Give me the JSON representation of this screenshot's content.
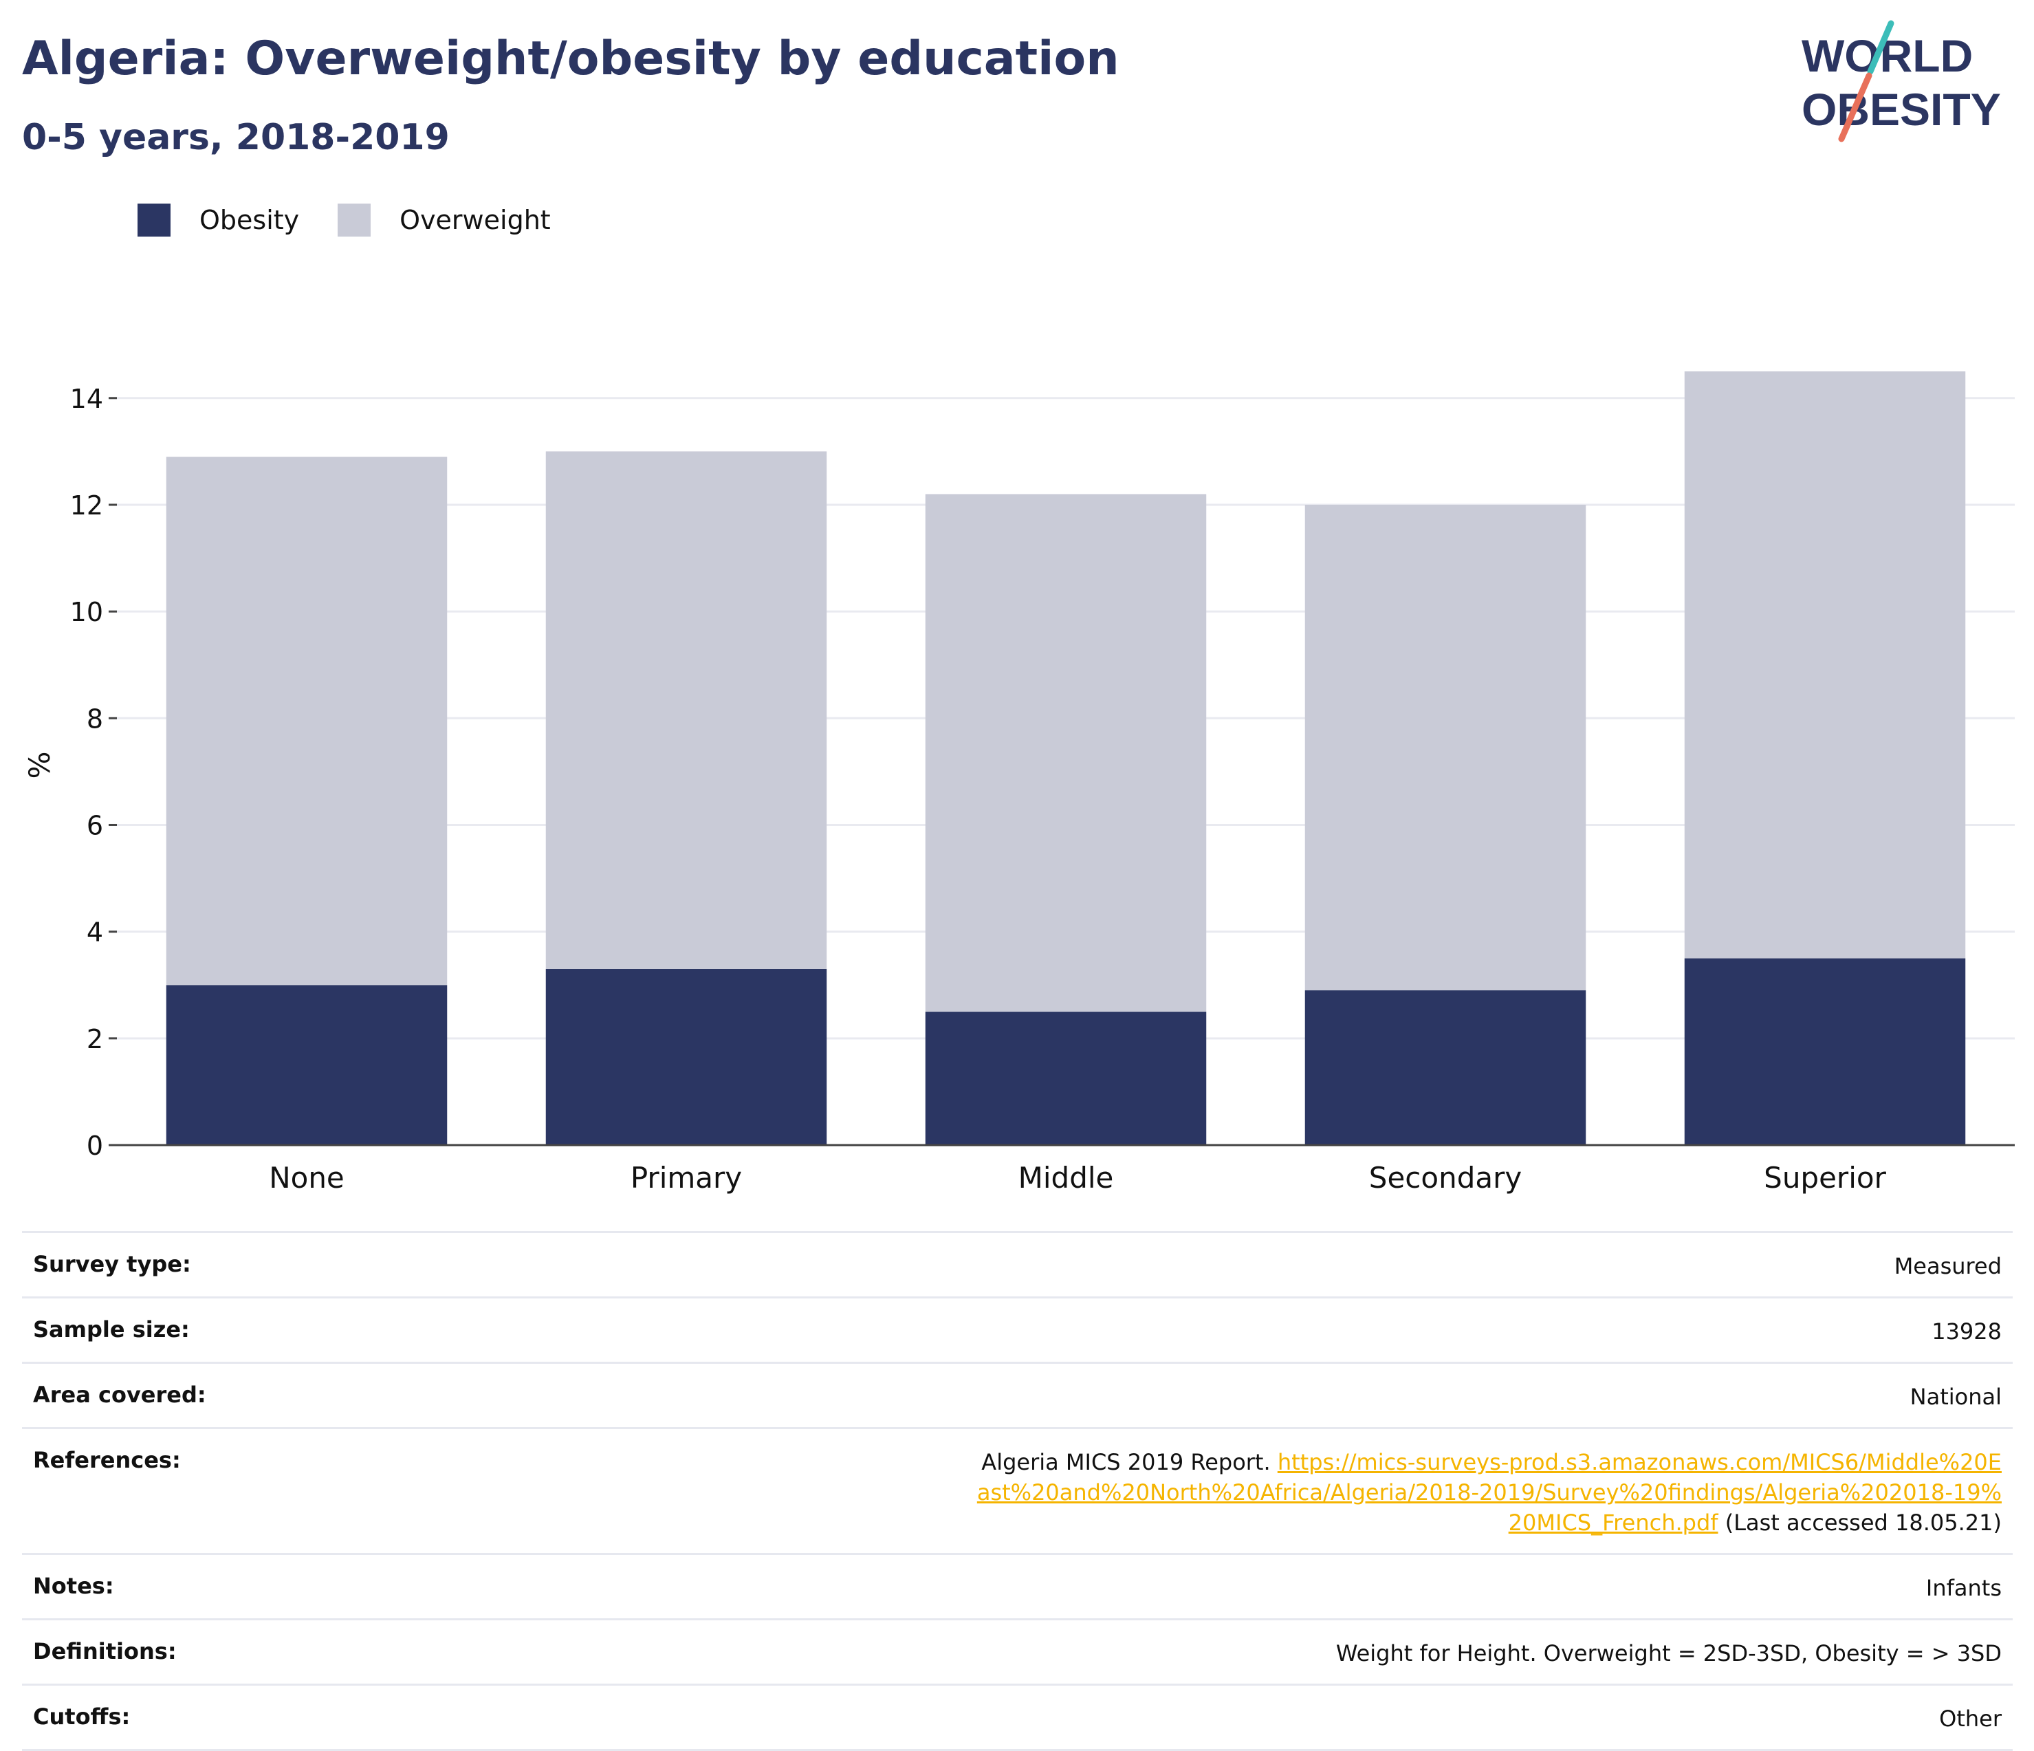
{
  "header": {
    "title": "Algeria: Overweight/obesity by education",
    "subtitle": "0-5 years, 2018-2019",
    "logo_line1": "WORLD",
    "logo_line2": "OBESITY"
  },
  "legend": [
    {
      "label": "Obesity",
      "color": "#2b3663"
    },
    {
      "label": "Overweight",
      "color": "#c9cbd7"
    }
  ],
  "chart_data": {
    "type": "bar",
    "stacked": true,
    "categories": [
      "None",
      "Primary",
      "Middle",
      "Secondary",
      "Superior"
    ],
    "series": [
      {
        "name": "Obesity",
        "values": [
          3.0,
          3.3,
          2.5,
          2.9,
          3.5
        ],
        "color": "#2b3663"
      },
      {
        "name": "Overweight",
        "values": [
          9.9,
          9.7,
          9.7,
          9.1,
          11.0
        ],
        "color": "#c9cbd7"
      }
    ],
    "ylabel": "%",
    "ylim": [
      0,
      14.5
    ],
    "yticks": [
      0,
      2,
      4,
      6,
      8,
      10,
      12,
      14
    ],
    "grid": true,
    "legend_position": "top-left"
  },
  "info": {
    "survey_type_label": "Survey type:",
    "survey_type": "Measured",
    "sample_size_label": "Sample size:",
    "sample_size": "13928",
    "area_label": "Area covered:",
    "area": "National",
    "references_label": "References:",
    "references_prefix": "Algeria MICS 2019 Report.",
    "references_url": "https://mics-surveys-prod.s3.amazonaws.com/MICS6/Middle%20East%20and%20North%20Africa/Algeria/2018-2019/Survey%20findings/Algeria%202018-19%20MICS_French.pdf",
    "references_suffix": "(Last accessed 18.05.21)",
    "notes_label": "Notes:",
    "notes": "Infants",
    "definitions_label": "Definitions:",
    "definitions": "Weight for Height. Overweight = 2SD-3SD, Obesity = > 3SD",
    "cutoffs_label": "Cutoffs:",
    "cutoffs": "Other"
  }
}
